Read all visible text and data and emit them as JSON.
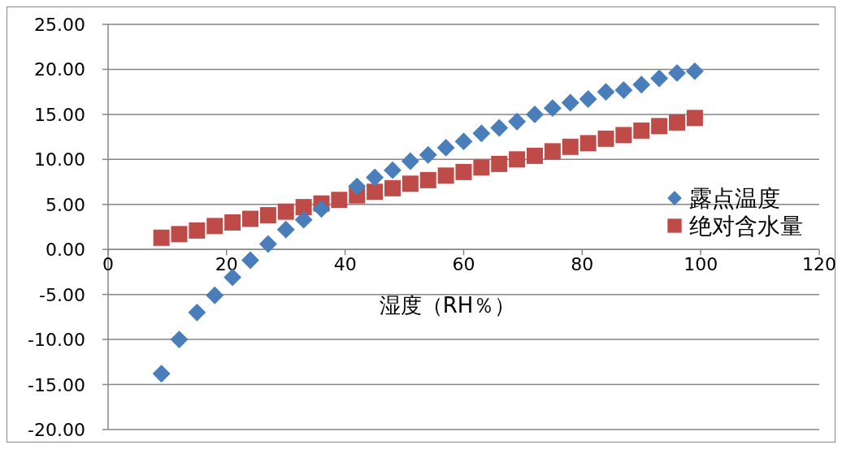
{
  "chart_data": {
    "type": "scatter",
    "xlabel": "湿度（RH％）",
    "x": [
      9,
      12,
      15,
      18,
      21,
      24,
      27,
      30,
      33,
      36,
      39,
      42,
      45,
      48,
      51,
      54,
      57,
      60,
      63,
      66,
      69,
      72,
      75,
      78,
      81,
      84,
      87,
      90,
      93,
      96,
      99
    ],
    "series": [
      {
        "name": "露点温度",
        "color": "#4a7ebb",
        "marker": "diamond",
        "values": [
          -13.8,
          -10,
          -7,
          -5.1,
          -3.1,
          -1.2,
          0.6,
          2.2,
          3.3,
          4.5,
          null,
          7,
          8,
          8.8,
          9.8,
          10.5,
          11.3,
          12,
          12.9,
          13.5,
          14.2,
          15,
          15.7,
          16.3,
          16.7,
          17.5,
          17.7,
          18.3,
          19,
          19.6,
          19.8
        ]
      },
      {
        "name": "绝对含水量",
        "color": "#be4b48",
        "marker": "square",
        "values": [
          1.3,
          1.7,
          2.1,
          2.6,
          3.0,
          3.4,
          3.8,
          4.2,
          4.7,
          5.1,
          5.5,
          6.0,
          6.4,
          6.8,
          7.3,
          7.7,
          8.2,
          8.6,
          9.1,
          9.5,
          10.0,
          10.4,
          10.9,
          11.4,
          11.8,
          12.3,
          12.7,
          13.2,
          13.7,
          14.1,
          14.6
        ]
      }
    ],
    "xlim": [
      0,
      120
    ],
    "xticks": [
      0,
      20,
      40,
      60,
      80,
      100,
      120
    ],
    "ylim": [
      -20,
      25
    ],
    "yticks": [
      {
        "value": -20,
        "label": "-20.00"
      },
      {
        "value": -15,
        "label": "-15.00"
      },
      {
        "value": -10,
        "label": "-10.00"
      },
      {
        "value": -5,
        "label": "-5.00"
      },
      {
        "value": 0,
        "label": "0.00"
      },
      {
        "value": 5,
        "label": "5.00"
      },
      {
        "value": 10,
        "label": "10.00"
      },
      {
        "value": 15,
        "label": "15.00"
      },
      {
        "value": 20,
        "label": "20.00"
      },
      {
        "value": 25,
        "label": "25.00"
      }
    ],
    "grid": "y",
    "legend": "right"
  }
}
